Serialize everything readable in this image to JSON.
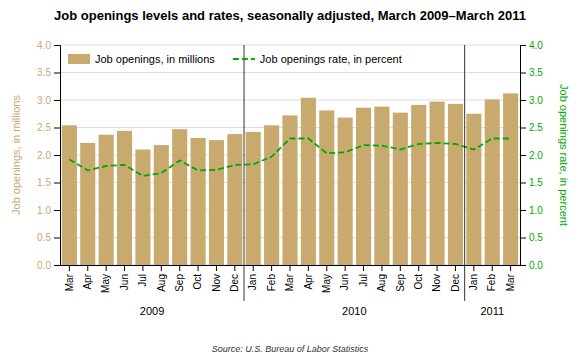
{
  "chart_data": {
    "type": "bar",
    "title": "Job openings levels and rates, seasonally adjusted, March 2009–March 2011",
    "source": "Source: U.S. Bureau of Labor Statistics",
    "categories": [
      "Mar",
      "Apr",
      "May",
      "Jun",
      "Jul",
      "Aug",
      "Sep",
      "Oct",
      "Nov",
      "Dec",
      "Jan",
      "Feb",
      "Mar",
      "Apr",
      "May",
      "Jun",
      "Jul",
      "Aug",
      "Sep",
      "Oct",
      "Nov",
      "Dec",
      "Jan",
      "Feb",
      "Mar"
    ],
    "series": [
      {
        "name": "Job openings, in millions",
        "type": "bar",
        "color": "#C8A96E",
        "values": [
          2.54,
          2.22,
          2.37,
          2.44,
          2.1,
          2.18,
          2.47,
          2.31,
          2.27,
          2.38,
          2.42,
          2.54,
          2.72,
          3.04,
          2.81,
          2.68,
          2.86,
          2.88,
          2.77,
          2.91,
          2.97,
          2.93,
          2.75,
          3.01,
          3.12
        ]
      },
      {
        "name": "Job openings rate, in percent",
        "type": "line",
        "axis": "y2",
        "color": "#00AA00",
        "line_style": "dashed",
        "values": [
          1.92,
          1.72,
          1.8,
          1.82,
          1.62,
          1.67,
          1.9,
          1.72,
          1.73,
          1.82,
          1.83,
          1.97,
          2.3,
          2.3,
          2.03,
          2.05,
          2.18,
          2.17,
          2.1,
          2.2,
          2.22,
          2.2,
          2.1,
          2.3,
          2.3
        ]
      }
    ],
    "ylabel": "Job openings, in millions",
    "y2label": "Job openings rate, in percent",
    "ylim": [
      0.0,
      4.0
    ],
    "yticks": [
      {
        "value": 0.0,
        "label": "0.0"
      },
      {
        "value": 0.5,
        "label": "0.5"
      },
      {
        "value": 1.0,
        "label": "1.0"
      },
      {
        "value": 1.5,
        "label": "1.5"
      },
      {
        "value": 2.0,
        "label": "2.0"
      },
      {
        "value": 2.5,
        "label": "2.5"
      },
      {
        "value": 3.0,
        "label": "3.0"
      },
      {
        "value": 3.5,
        "label": "3.5"
      },
      {
        "value": 4.0,
        "label": "4.0"
      }
    ],
    "y2lim": [
      0.0,
      4.0
    ],
    "y2ticks": [
      {
        "value": 0.0,
        "label": "0.0"
      },
      {
        "value": 0.5,
        "label": "0.5"
      },
      {
        "value": 1.0,
        "label": "1.0"
      },
      {
        "value": 1.5,
        "label": "1.5"
      },
      {
        "value": 2.0,
        "label": "2.0"
      },
      {
        "value": 2.5,
        "label": "2.5"
      },
      {
        "value": 3.0,
        "label": "3.0"
      },
      {
        "value": 3.5,
        "label": "3.5"
      },
      {
        "value": 4.0,
        "label": "4.0"
      }
    ],
    "grid": true,
    "legend": "upper left",
    "annotations": [
      {
        "text": "2009",
        "span": [
          0,
          9
        ]
      },
      {
        "text": "2010",
        "span": [
          10,
          21
        ]
      },
      {
        "text": "2011",
        "span": [
          22,
          24
        ]
      }
    ]
  }
}
